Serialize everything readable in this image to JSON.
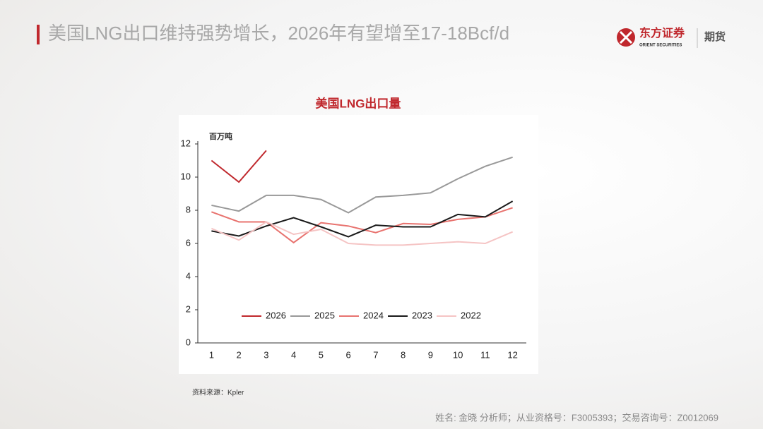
{
  "header": {
    "title": "美国LNG出口维持强势增长，2026年有望增至17-18Bcf/d",
    "logo_name": "东方证券",
    "logo_sub": "ORIENT SECURITIES",
    "division": "期货"
  },
  "chart_data": {
    "type": "line",
    "title": "美国LNG出口量",
    "y_unit": "百万吨",
    "categories": [
      "1",
      "2",
      "3",
      "4",
      "5",
      "6",
      "7",
      "8",
      "9",
      "10",
      "11",
      "12"
    ],
    "ylim": [
      0,
      12
    ],
    "yticks": [
      0,
      2,
      4,
      6,
      8,
      10,
      12
    ],
    "grid": false,
    "legend": "bottom",
    "series": [
      {
        "name": "2026",
        "color": "#c0282d",
        "values": [
          11.0,
          9.7,
          11.6,
          null,
          null,
          null,
          null,
          null,
          null,
          null,
          null,
          null
        ]
      },
      {
        "name": "2025",
        "color": "#999999",
        "values": [
          8.3,
          7.95,
          8.9,
          8.9,
          8.65,
          7.85,
          8.8,
          8.9,
          9.05,
          9.9,
          10.65,
          11.2
        ]
      },
      {
        "name": "2024",
        "color": "#e8736f",
        "values": [
          7.9,
          7.3,
          7.3,
          6.05,
          7.25,
          7.05,
          6.65,
          7.2,
          7.15,
          7.45,
          7.6,
          8.15
        ]
      },
      {
        "name": "2023",
        "color": "#1a1a1a",
        "values": [
          6.75,
          6.45,
          7.05,
          7.55,
          7.0,
          6.4,
          7.1,
          7.0,
          7.0,
          7.75,
          7.6,
          8.55
        ]
      },
      {
        "name": "2022",
        "color": "#f5c4c4",
        "values": [
          6.9,
          6.2,
          7.3,
          6.55,
          6.85,
          6.0,
          5.9,
          5.9,
          6.0,
          6.1,
          6.0,
          6.7
        ]
      }
    ]
  },
  "source": "资料来源：Kpler",
  "footer": "姓名: 金晓 分析师；从业资格号：F3005393；交易咨询号：Z0012069"
}
